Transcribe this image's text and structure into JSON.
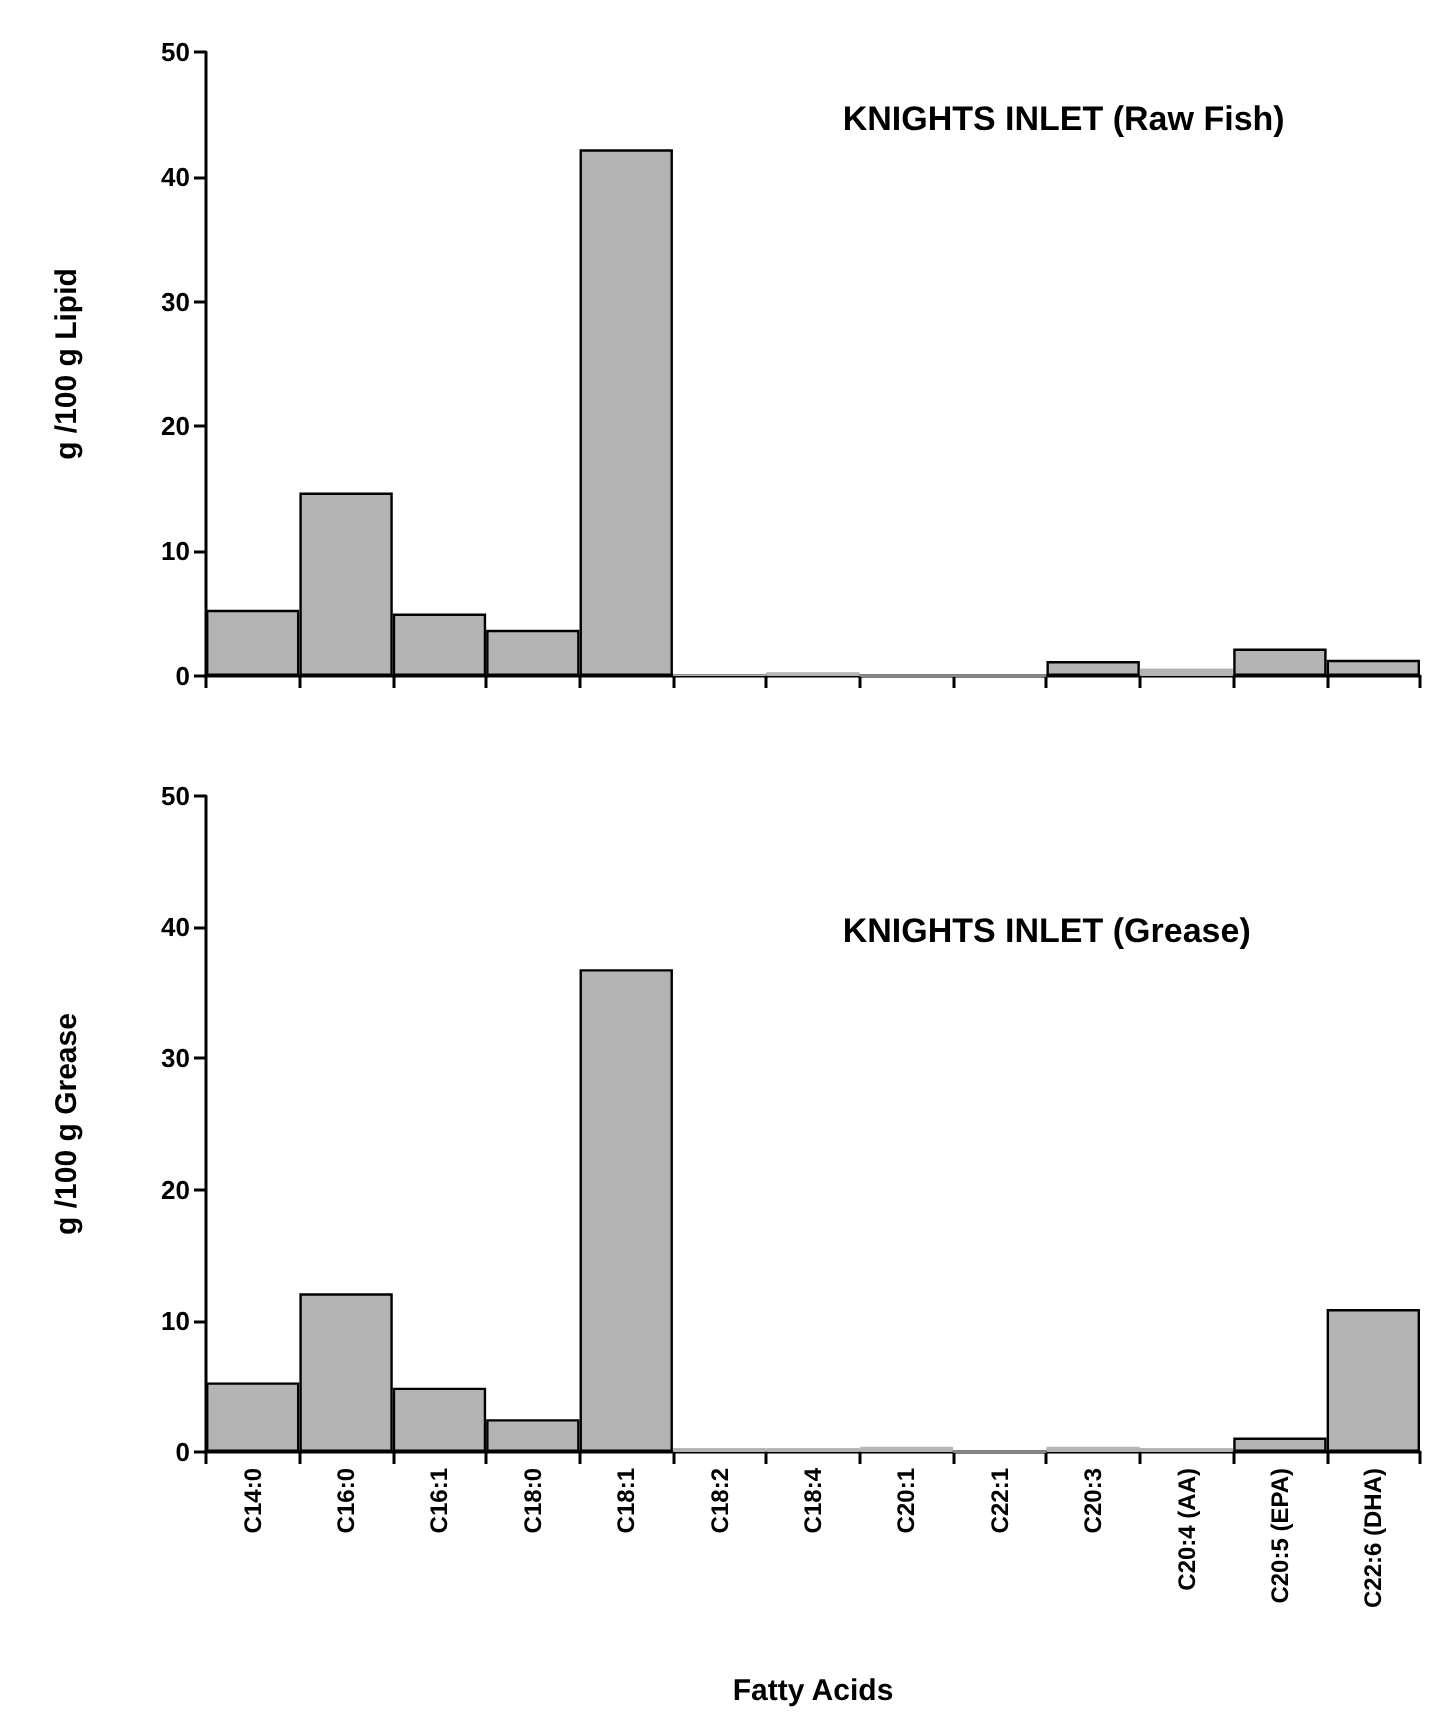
{
  "chart_data": [
    {
      "type": "bar",
      "title": "KNIGHTS INLET (Raw Fish)",
      "ylabel": "g /100 g Lipid",
      "categories": [
        null,
        null,
        null,
        null,
        null,
        null,
        null,
        null,
        null,
        null,
        null,
        null,
        null
      ],
      "values": [
        5.3,
        14.7,
        5.0,
        3.7,
        42.2,
        0.1,
        0.3,
        0,
        0,
        1.2,
        0.6,
        2.2,
        1.3
      ],
      "color": "#b4b4b4",
      "ylim": [
        0,
        50
      ],
      "yticks": [
        0,
        10,
        20,
        30,
        40,
        50
      ],
      "grid": false,
      "tick_labels": "y"
    },
    {
      "type": "bar",
      "title": "KNIGHTS INLET (Grease)",
      "xlabel": "Fatty Acids",
      "ylabel": "g /100 g Grease",
      "categories": [
        "C14:0",
        "C16:0",
        "C16:1",
        "C18:0",
        "C18:1",
        "C18:2",
        "C18:4",
        "C20:1",
        "C22:1",
        "C20:3",
        "C20:4 (AA)",
        "C20:5 (EPA)",
        "C22:6 (DHA)"
      ],
      "values": [
        5.3,
        12.1,
        4.9,
        2.5,
        36.8,
        0.3,
        0.3,
        0.4,
        0,
        0.4,
        0.3,
        1.1,
        10.9
      ],
      "color": "#b4b4b4",
      "ylim": [
        0,
        50
      ],
      "yticks": [
        0,
        10,
        20,
        30,
        40,
        50
      ],
      "grid": false
    }
  ]
}
